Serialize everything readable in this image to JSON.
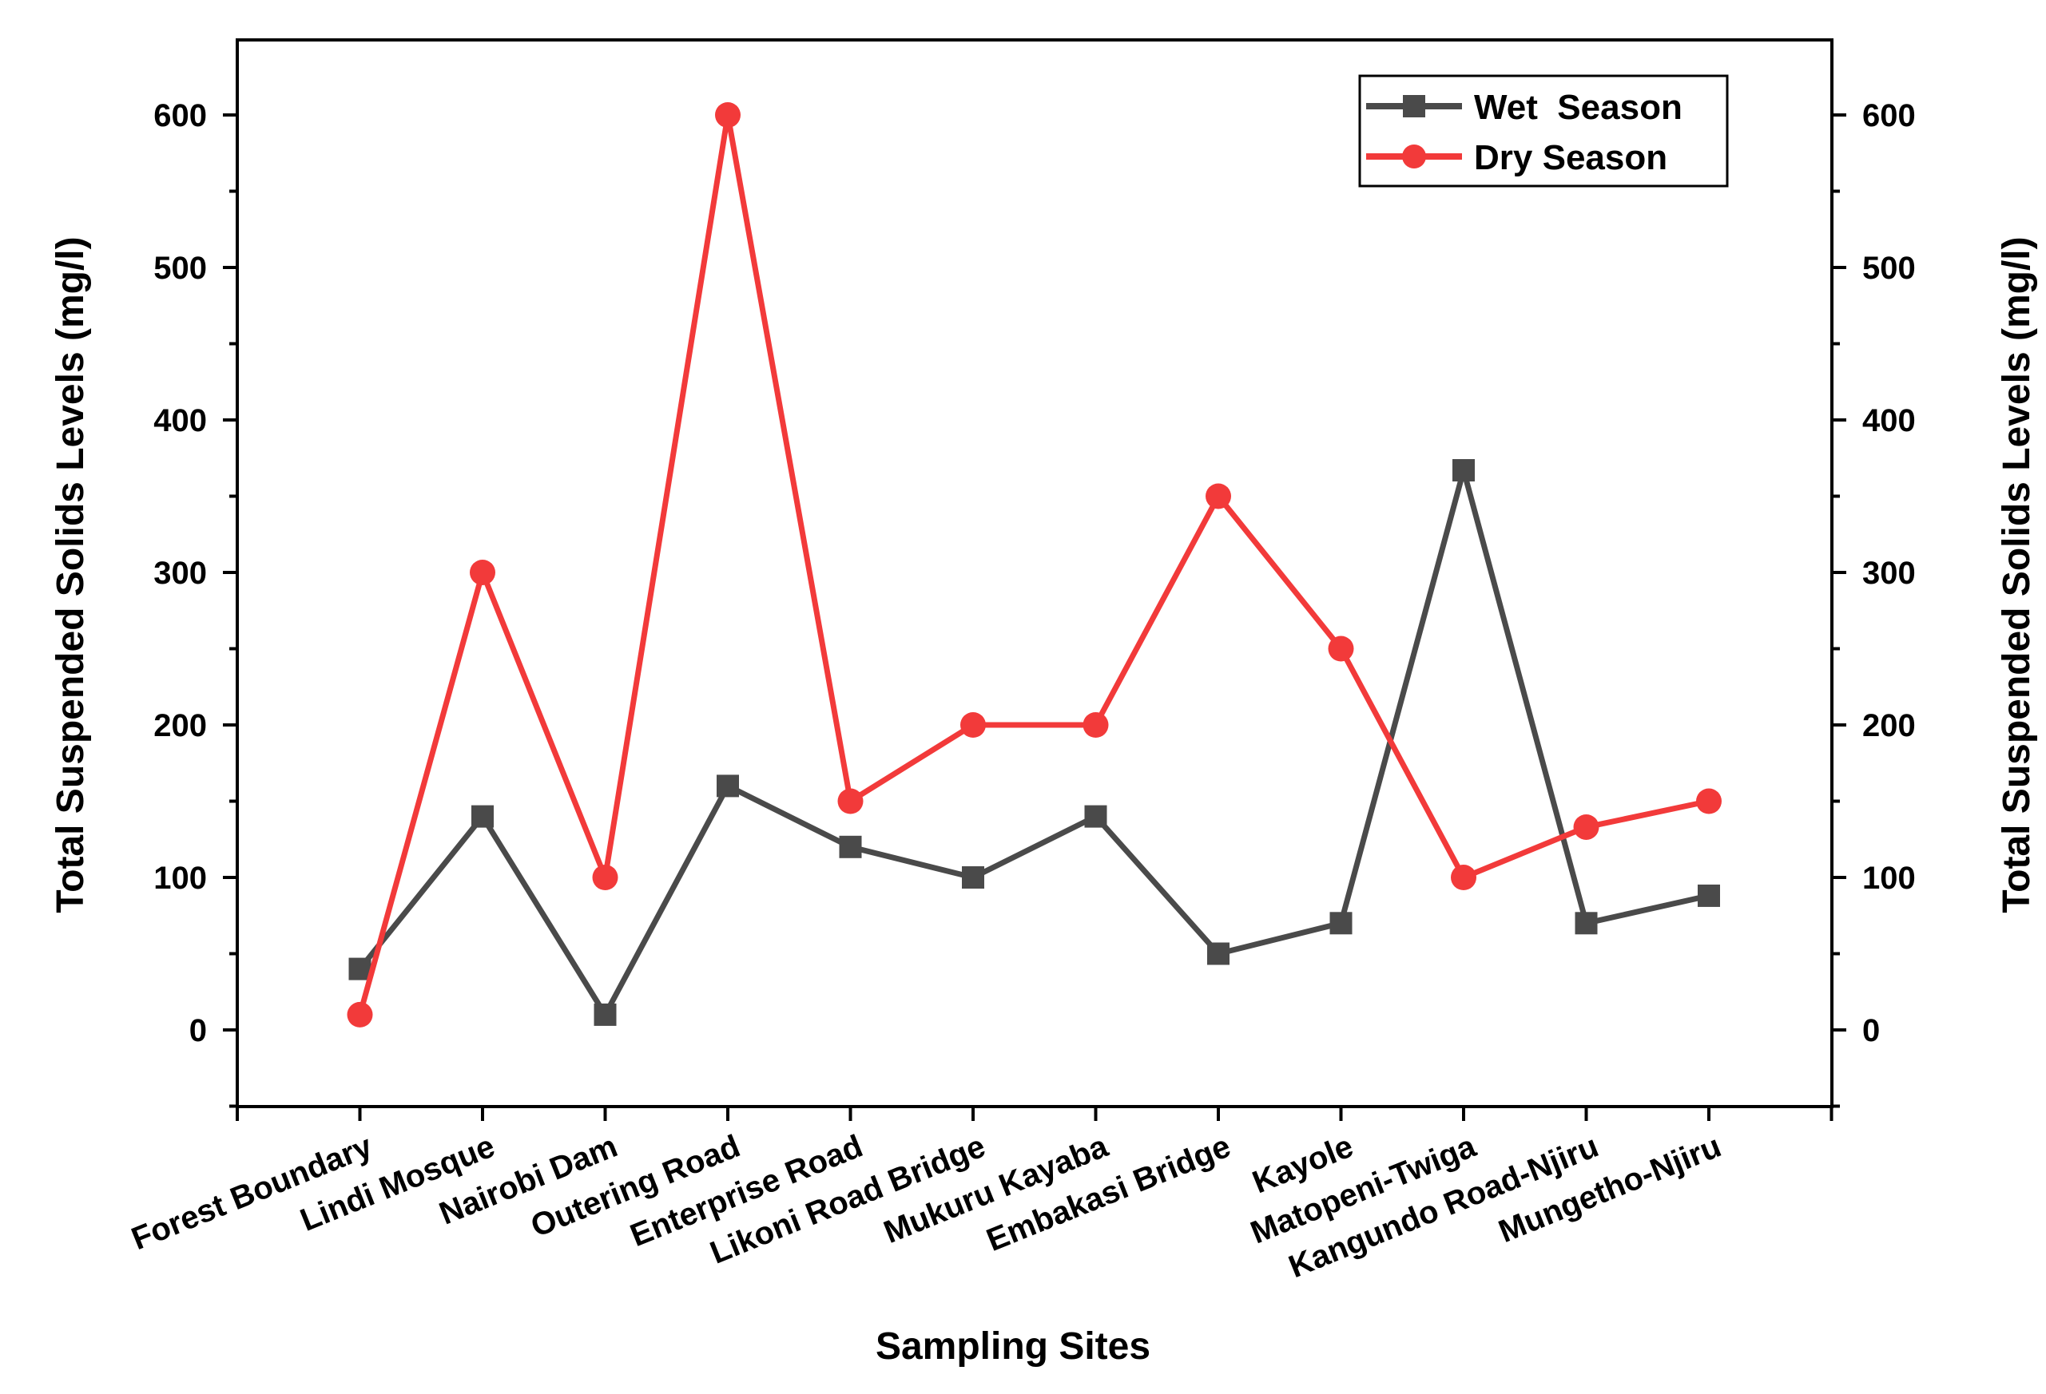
{
  "chart_data": {
    "type": "line",
    "xlabel": "Sampling Sites",
    "ylabel": "Total Suspended Solids Levels (mg/l)",
    "ylabel_right": "Total Suspended Solids Levels (mg/l)",
    "ylim": [
      -50,
      650
    ],
    "yticks": [
      0,
      100,
      200,
      300,
      400,
      500,
      600
    ],
    "categories": [
      "Forest Boundary",
      "Lindi Mosque",
      "Nairobi Dam",
      "Outering Road",
      "Enterprise Road",
      "Likoni Road Bridge",
      "Mukuru Kayaba",
      "Embakasi Bridge",
      "Kayole",
      "Matopeni-Twiga",
      "Kangundo Road-Njiru",
      "Mungetho-Njiru"
    ],
    "series": [
      {
        "name": "Wet  Season",
        "marker": "square",
        "color": "#4a4a4a",
        "values": [
          40,
          140,
          10,
          160,
          120,
          100,
          140,
          50,
          70,
          367,
          70,
          88
        ]
      },
      {
        "name": "Dry Season",
        "marker": "circle",
        "color": "#f23a3a",
        "values": [
          10,
          300,
          100,
          600,
          150,
          200,
          200,
          350,
          250,
          100,
          133,
          150
        ]
      }
    ],
    "legend_position": "top-right",
    "grid": false
  }
}
